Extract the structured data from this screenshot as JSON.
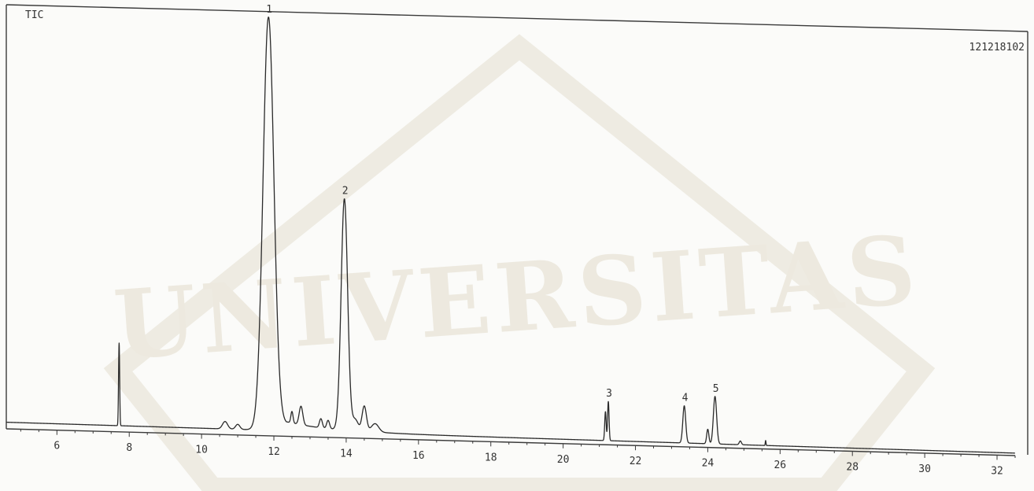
{
  "watermark": {
    "text": "UNIVERSITAS",
    "color": "#cfc8b4"
  },
  "colors": {
    "trace": "#2a2a2a",
    "frame": "#3a3a3a",
    "background": "#fbfbf9"
  },
  "chart_data": {
    "type": "line",
    "title": "TIC",
    "file_id": "121218102",
    "xlabel": "",
    "ylabel": "",
    "xlim": [
      4.6,
      32.5
    ],
    "ylim": [
      0,
      100
    ],
    "grid": false,
    "xticks": [
      6,
      8,
      10,
      12,
      14,
      16,
      18,
      20,
      22,
      24,
      26,
      28,
      30,
      32
    ],
    "xtick_labels": [
      "6",
      "8",
      "10",
      "12",
      "14",
      "16",
      "18",
      "20",
      "22",
      "24",
      "26",
      "28",
      "30",
      "32"
    ],
    "baseline": {
      "start": 1.6,
      "end": 0.6
    },
    "peaks": [
      {
        "label": "",
        "rt": 7.72,
        "height": 20.0,
        "width": 0.015
      },
      {
        "label": "",
        "rt": 10.65,
        "height": 1.8,
        "width": 0.07
      },
      {
        "label": "",
        "rt": 11.0,
        "height": 1.2,
        "width": 0.06
      },
      {
        "label": "1",
        "rt": 11.85,
        "height": 100.0,
        "width": 0.15,
        "tail": 0.55
      },
      {
        "label": "",
        "rt": 12.5,
        "height": 2.8,
        "width": 0.03
      },
      {
        "label": "",
        "rt": 12.75,
        "height": 4.5,
        "width": 0.05
      },
      {
        "label": "",
        "rt": 13.3,
        "height": 2.2,
        "width": 0.04
      },
      {
        "label": "",
        "rt": 13.5,
        "height": 2.0,
        "width": 0.04
      },
      {
        "label": "2",
        "rt": 13.95,
        "height": 56.0,
        "width": 0.09,
        "tail": 0.2
      },
      {
        "label": "",
        "rt": 14.25,
        "height": 2.5,
        "width": 0.08
      },
      {
        "label": "",
        "rt": 14.5,
        "height": 6.0,
        "width": 0.06
      },
      {
        "label": "",
        "rt": 14.8,
        "height": 2.0,
        "width": 0.1
      },
      {
        "label": "",
        "rt": 21.17,
        "height": 7.0,
        "width": 0.02
      },
      {
        "label": "3",
        "rt": 21.25,
        "height": 9.5,
        "width": 0.02
      },
      {
        "label": "4",
        "rt": 23.35,
        "height": 9.0,
        "width": 0.04
      },
      {
        "label": "",
        "rt": 24.0,
        "height": 3.5,
        "width": 0.03
      },
      {
        "label": "5",
        "rt": 24.2,
        "height": 11.5,
        "width": 0.045
      },
      {
        "label": "",
        "rt": 24.9,
        "height": 0.9,
        "width": 0.03
      },
      {
        "label": "",
        "rt": 25.6,
        "height": 1.2,
        "width": 0.01
      }
    ]
  }
}
